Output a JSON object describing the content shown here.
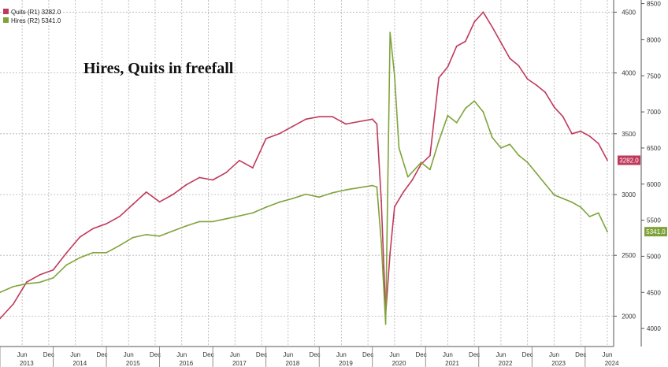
{
  "chart_data": {
    "type": "line",
    "title": "Hires, Quits in freefall",
    "legend": {
      "placement": "top-left",
      "entries": [
        {
          "label": "Quits (R1) 3282.0",
          "color": "#c0395b"
        },
        {
          "label": "Hires (R2) 5341.0",
          "color": "#7fa33a"
        }
      ]
    },
    "grid": true,
    "x_start": "2013-01",
    "x_end": "2024-06",
    "x_tick_labels": [
      "Jun",
      "Dec",
      "Jun",
      "Dec",
      "Jun",
      "Dec",
      "Jun",
      "Dec",
      "Jun",
      "Dec",
      "Jun",
      "Dec",
      "Jun",
      "Dec",
      "Jun",
      "Dec",
      "Jun",
      "Dec",
      "Jun",
      "Dec",
      "Jun",
      "Dec",
      "Jun",
      "Dec",
      "Jun",
      "Dec",
      "Jun",
      "Dec",
      "Jun",
      "Dec",
      "Jun",
      "Dec",
      "Jun",
      "Dec",
      "Jun",
      "Dec",
      "Jun",
      "Dec",
      "Jun",
      "Dec",
      "Jun",
      "Dec",
      "Jun",
      "Dec",
      "Jun",
      "Dec",
      "Jun"
    ],
    "x_year_labels": [
      "2013",
      "2014",
      "2015",
      "2016",
      "2017",
      "2018",
      "2019",
      "2020",
      "2021",
      "2022",
      "2023",
      "2024"
    ],
    "axes": {
      "r1": {
        "label": "",
        "range": [
          1750,
          4600
        ],
        "ticks": [
          2000,
          2500,
          3000,
          3500,
          4000,
          4500
        ]
      },
      "r2": {
        "label": "",
        "range": [
          3750,
          8550
        ],
        "ticks": [
          4000,
          4500,
          5000,
          5500,
          6000,
          6500,
          7000,
          7500,
          8000,
          8500
        ]
      }
    },
    "series": [
      {
        "name": "Quits (R1) 3282.0",
        "axis": "r1",
        "color": "#c0395b",
        "last_value_label": "3282.0",
        "x": [
          "2013-01",
          "2013-04",
          "2013-07",
          "2013-10",
          "2014-01",
          "2014-04",
          "2014-07",
          "2014-10",
          "2015-01",
          "2015-04",
          "2015-07",
          "2015-10",
          "2016-01",
          "2016-04",
          "2016-07",
          "2016-10",
          "2017-01",
          "2017-04",
          "2017-07",
          "2017-10",
          "2018-01",
          "2018-04",
          "2018-07",
          "2018-10",
          "2019-01",
          "2019-04",
          "2019-07",
          "2019-10",
          "2020-01",
          "2020-02",
          "2020-03",
          "2020-04",
          "2020-05",
          "2020-06",
          "2020-08",
          "2020-10",
          "2020-12",
          "2021-02",
          "2021-04",
          "2021-06",
          "2021-08",
          "2021-10",
          "2021-12",
          "2022-02",
          "2022-04",
          "2022-06",
          "2022-08",
          "2022-10",
          "2022-12",
          "2023-02",
          "2023-04",
          "2023-06",
          "2023-08",
          "2023-10",
          "2023-12",
          "2024-02",
          "2024-04",
          "2024-06"
        ],
        "values": [
          1980,
          2100,
          2280,
          2340,
          2380,
          2520,
          2650,
          2720,
          2760,
          2820,
          2920,
          3020,
          2940,
          3000,
          3080,
          3140,
          3120,
          3180,
          3280,
          3220,
          3460,
          3500,
          3560,
          3620,
          3640,
          3640,
          3580,
          3600,
          3620,
          3580,
          2950,
          2020,
          2520,
          2900,
          3020,
          3120,
          3250,
          3320,
          3960,
          4050,
          4220,
          4260,
          4420,
          4500,
          4380,
          4250,
          4120,
          4060,
          3950,
          3900,
          3840,
          3720,
          3640,
          3500,
          3520,
          3480,
          3420,
          3282
        ]
      },
      {
        "name": "Hires (R2) 5341.0",
        "axis": "r2",
        "color": "#7fa33a",
        "last_value_label": "5341.0",
        "x": [
          "2013-01",
          "2013-04",
          "2013-07",
          "2013-10",
          "2014-01",
          "2014-04",
          "2014-07",
          "2014-10",
          "2015-01",
          "2015-04",
          "2015-07",
          "2015-10",
          "2016-01",
          "2016-04",
          "2016-07",
          "2016-10",
          "2017-01",
          "2017-04",
          "2017-07",
          "2017-10",
          "2018-01",
          "2018-04",
          "2018-07",
          "2018-10",
          "2019-01",
          "2019-04",
          "2019-07",
          "2019-10",
          "2020-01",
          "2020-02",
          "2020-03",
          "2020-04",
          "2020-05",
          "2020-06",
          "2020-07",
          "2020-09",
          "2020-12",
          "2021-02",
          "2021-04",
          "2021-06",
          "2021-08",
          "2021-10",
          "2021-12",
          "2022-02",
          "2022-04",
          "2022-06",
          "2022-08",
          "2022-10",
          "2022-12",
          "2023-02",
          "2023-04",
          "2023-06",
          "2023-08",
          "2023-10",
          "2023-12",
          "2024-02",
          "2024-04",
          "2024-06"
        ],
        "values": [
          4500,
          4580,
          4620,
          4640,
          4700,
          4880,
          4980,
          5050,
          5050,
          5150,
          5260,
          5300,
          5280,
          5350,
          5420,
          5480,
          5480,
          5520,
          5560,
          5600,
          5680,
          5750,
          5800,
          5860,
          5820,
          5880,
          5920,
          5950,
          5980,
          5960,
          5200,
          4060,
          8100,
          7500,
          6500,
          6100,
          6300,
          6200,
          6600,
          6950,
          6850,
          7050,
          7150,
          7000,
          6650,
          6500,
          6550,
          6400,
          6300,
          6150,
          6000,
          5850,
          5800,
          5750,
          5680,
          5550,
          5600,
          5341
        ]
      }
    ]
  }
}
